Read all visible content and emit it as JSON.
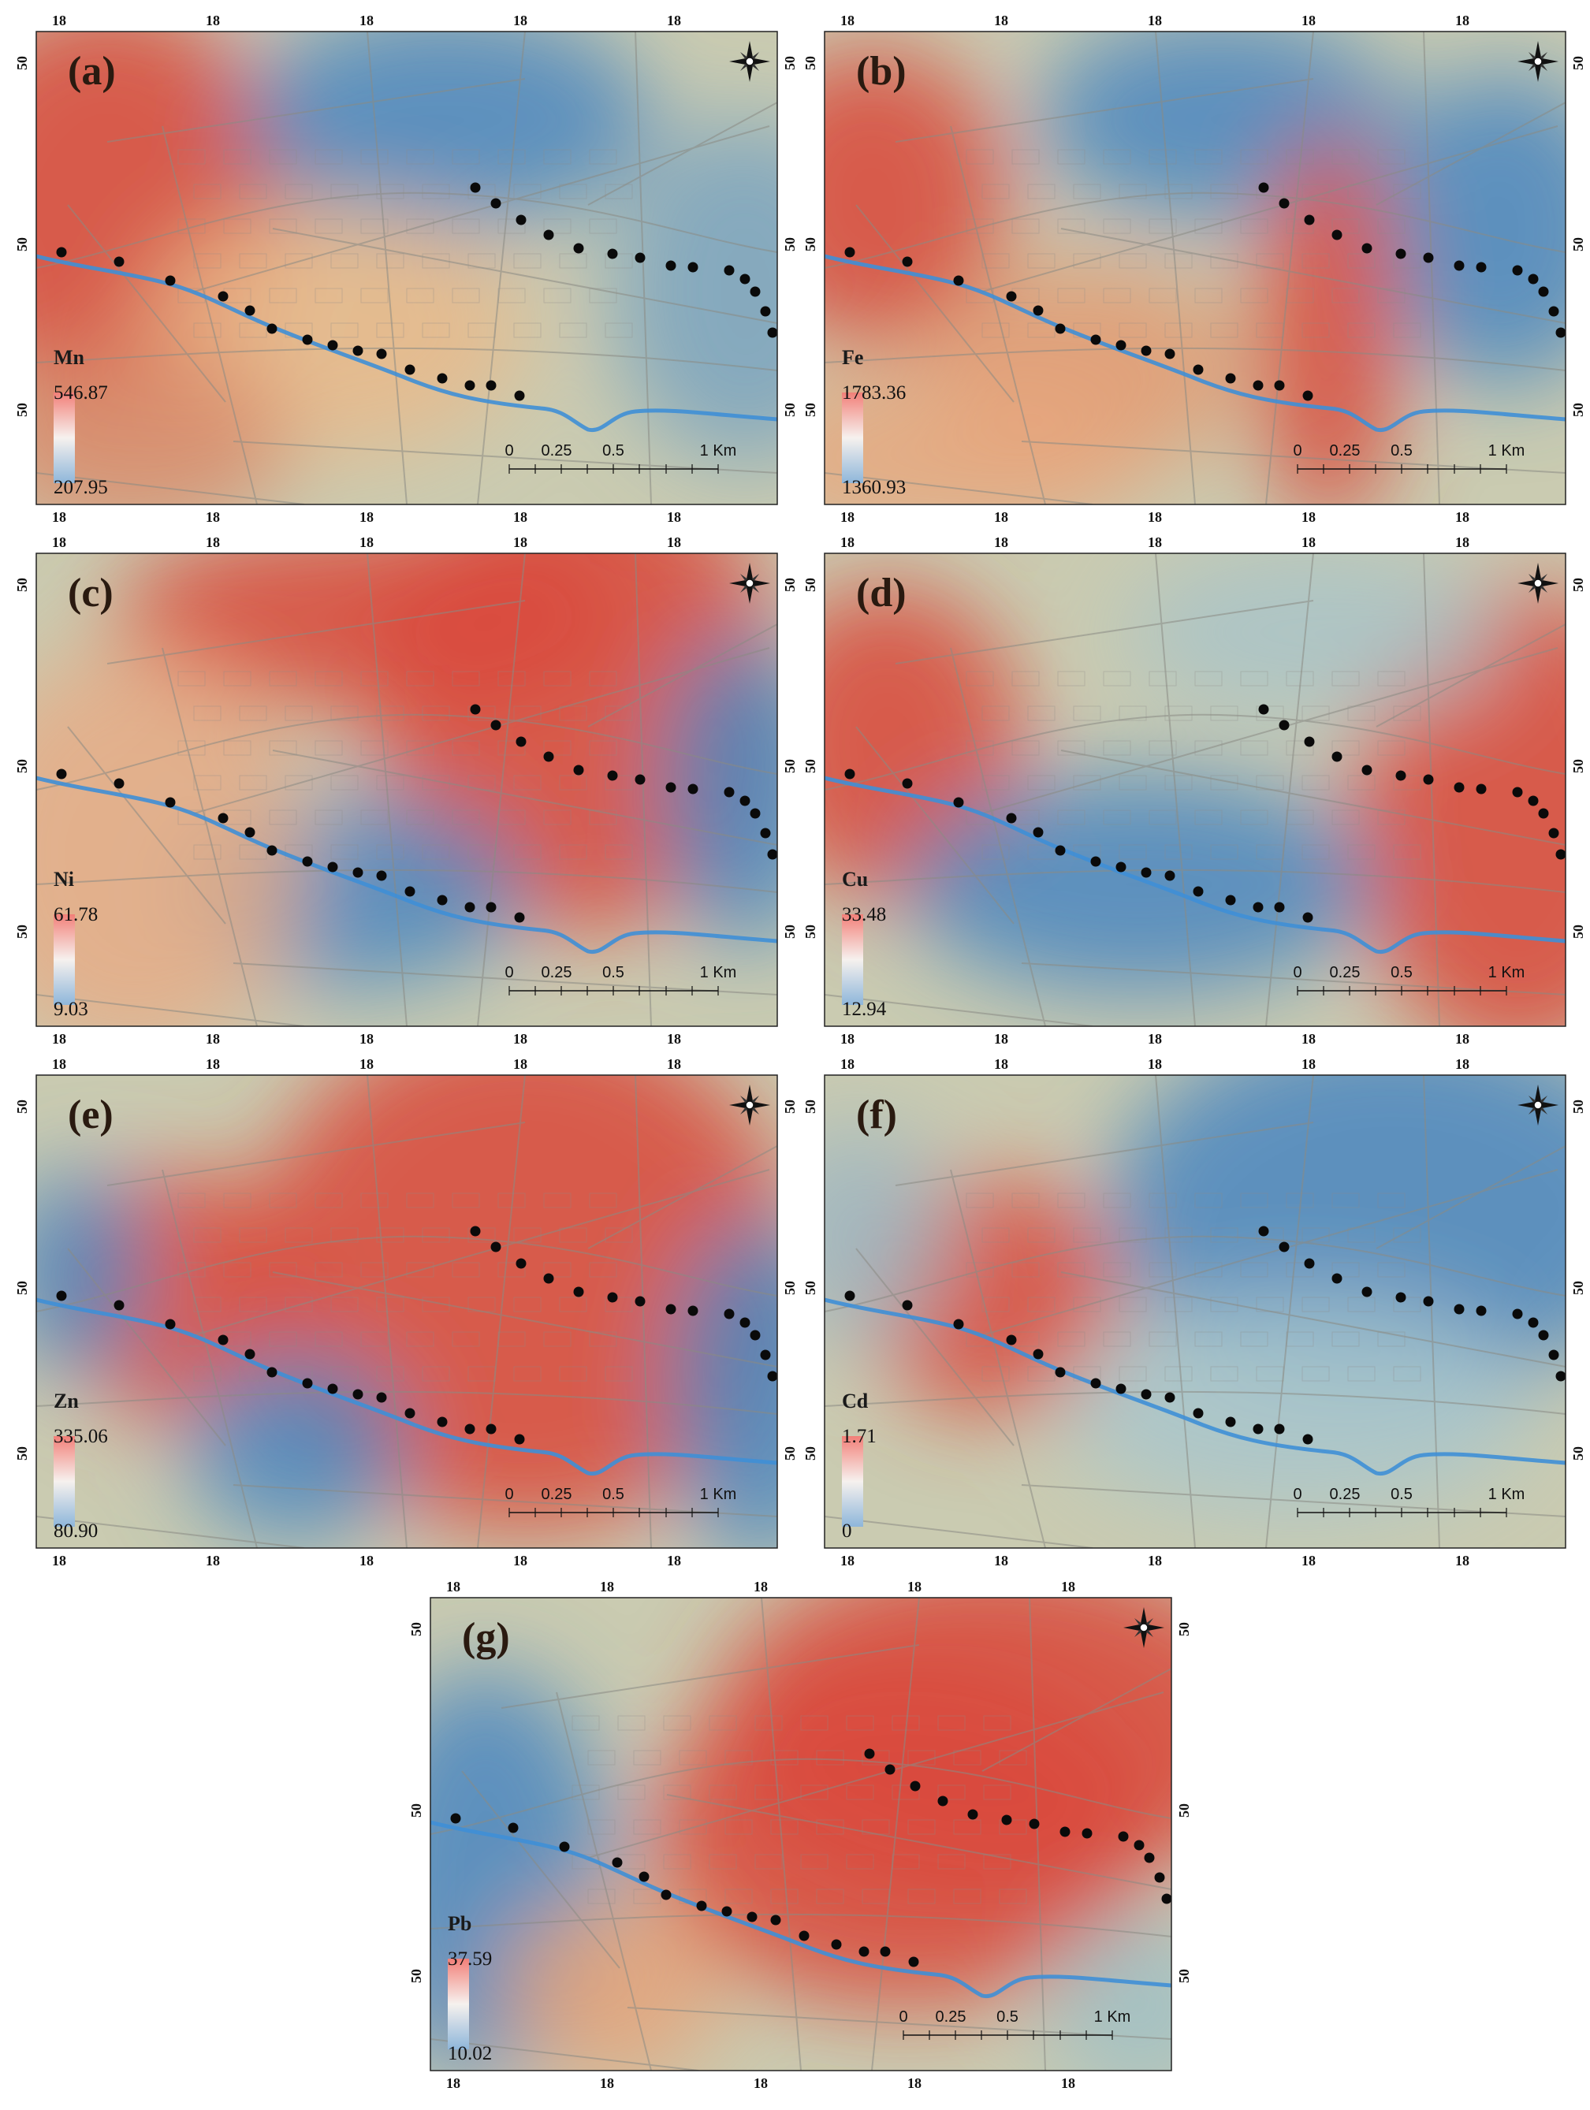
{
  "panels": [
    {
      "letter": "(a)",
      "element": "Mn",
      "max": "546.87",
      "min": "207.95"
    },
    {
      "letter": "(b)",
      "element": "Fe",
      "max": "1783.36",
      "min": "1360.93"
    },
    {
      "letter": "(c)",
      "element": "Ni",
      "max": "61.78",
      "min": "9.03"
    },
    {
      "letter": "(d)",
      "element": "Cu",
      "max": "33.48",
      "min": "12.94"
    },
    {
      "letter": "(e)",
      "element": "Zn",
      "max": "335.06",
      "min": "80.90"
    },
    {
      "letter": "(f)",
      "element": "Cd",
      "max": "1.71",
      "min": "0"
    },
    {
      "letter": "(g)",
      "element": "Pb",
      "max": "37.59",
      "min": "10.02"
    }
  ],
  "scale_bar": {
    "labels": [
      "0",
      "0.25",
      "0.5",
      "1 Km"
    ]
  },
  "frame_ticks": {
    "lon": "18",
    "lat": "50"
  },
  "colors": {
    "high": "#d9483b",
    "mid": "#f2efe3",
    "low": "#4a86c0",
    "river": "#3f8fd6"
  },
  "icons": {
    "north_arrow": "compass-rose-icon"
  }
}
